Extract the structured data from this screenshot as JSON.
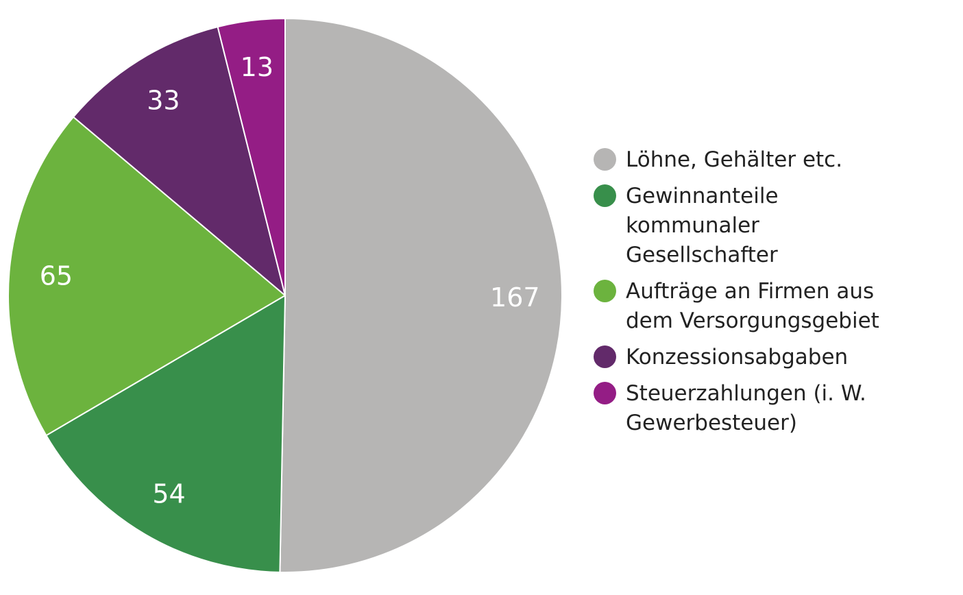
{
  "chart_data": {
    "type": "pie",
    "title": "",
    "start": "top, clockwise",
    "legend_position": "right",
    "slices": [
      {
        "label": "Löhne, Gehälter etc.",
        "value": 167,
        "value_label": "167",
        "color": "#b6b5b4"
      },
      {
        "label": "Gewinnanteile kommunaler Gesellschafter",
        "value": 54,
        "value_label": "54",
        "color": "#388f4b"
      },
      {
        "label": "Aufträge an Firmen aus dem Versorgungsgebiet",
        "value": 65,
        "value_label": "65",
        "color": "#6cb33e"
      },
      {
        "label": "Konzessionsabgaben",
        "value": 33,
        "value_label": "33",
        "color": "#622a6a"
      },
      {
        "label": "Steuerzahlungen (i. W. Gewerbesteuer)",
        "value": 13,
        "value_label": "13",
        "color": "#941d85"
      }
    ]
  },
  "legend": {
    "items": [
      {
        "text": "Löhne, Gehälter etc.",
        "color": "#b6b5b4"
      },
      {
        "text": "Gewinnanteile\nkommunaler\nGesellschafter",
        "color": "#388f4b"
      },
      {
        "text": "Aufträge an Firmen aus\ndem Versorgungsgebiet",
        "color": "#6cb33e"
      },
      {
        "text": "Konzessionsabgaben",
        "color": "#622a6a"
      },
      {
        "text": "Steuerzahlungen (i. W.\nGewerbesteuer)",
        "color": "#941d85"
      }
    ]
  }
}
